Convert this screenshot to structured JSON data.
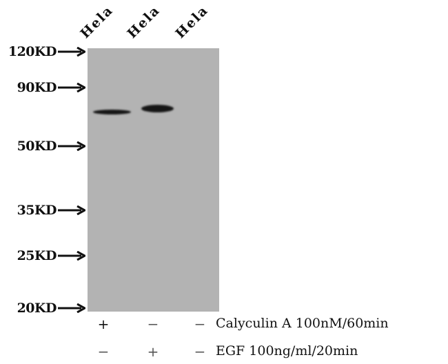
{
  "lanes": [
    "Hela",
    "Hela",
    "Hela"
  ],
  "markers": [
    "120KD",
    "90KD",
    "50KD",
    "35KD",
    "25KD",
    "20KD"
  ],
  "treatments": [
    {
      "label": "Calyculin A 100nM/60min",
      "signs": [
        "+",
        "−",
        "−"
      ]
    },
    {
      "label": "EGF 100ng/ml/20min",
      "signs": [
        "−",
        "+",
        "−"
      ]
    }
  ],
  "colors": {
    "membrane": "#b3b3b3",
    "band": "#161616"
  }
}
